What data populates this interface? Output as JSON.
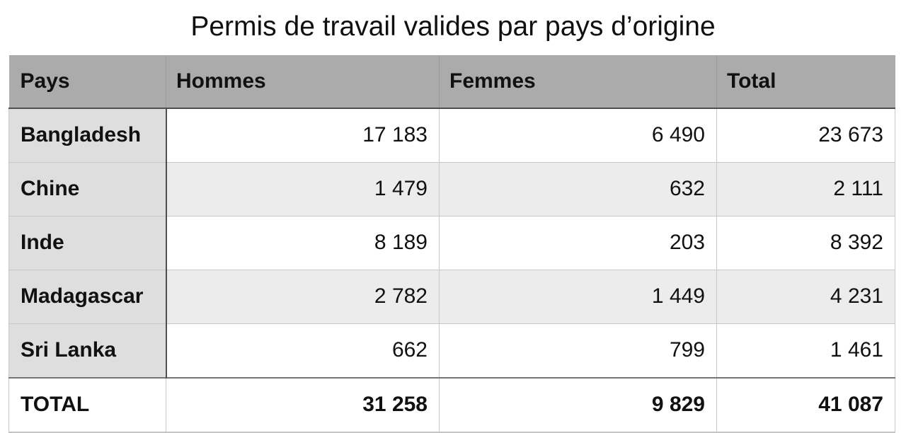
{
  "title": "Permis de travail valides par pays d’origine",
  "table": {
    "columns": [
      "Pays",
      "Hommes",
      "Femmes",
      "Total"
    ],
    "rows": [
      {
        "pays": "Bangladesh",
        "hommes": "17 183",
        "femmes": "6 490",
        "total": "23 673"
      },
      {
        "pays": "Chine",
        "hommes": "1 479",
        "femmes": "632",
        "total": "2 111"
      },
      {
        "pays": "Inde",
        "hommes": "8 189",
        "femmes": "203",
        "total": "8 392"
      },
      {
        "pays": "Madagascar",
        "hommes": "2 782",
        "femmes": "1 449",
        "total": "4 231"
      },
      {
        "pays": "Sri Lanka",
        "hommes": "662",
        "femmes": "799",
        "total": "1 461"
      }
    ],
    "total_row": {
      "pays": "TOTAL",
      "hommes": "31 258",
      "femmes": "9 829",
      "total": "41 087"
    }
  },
  "colors": {
    "header_bg": "#ababab",
    "first_col_bg": "#dedede",
    "alt_row_bg": "#ececec",
    "row_bg": "#ffffff",
    "dark_border": "#4f4f4f",
    "total_top_border": "#757575",
    "light_border": "#c8c8c8",
    "text": "#111111"
  }
}
